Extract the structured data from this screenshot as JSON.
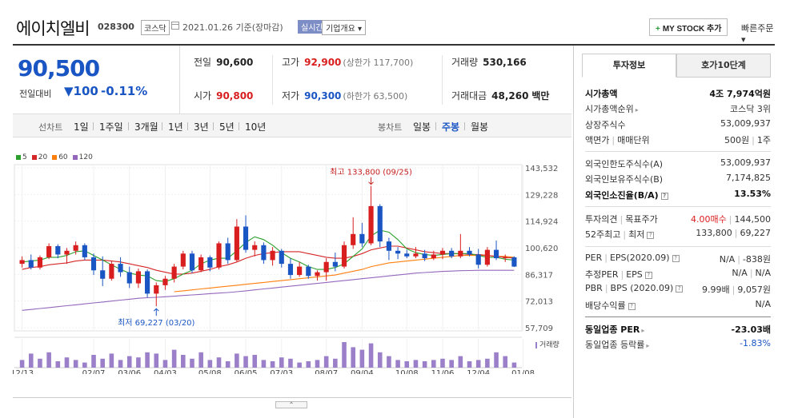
{
  "header": {
    "name": "에이치엘비",
    "code": "028300",
    "market": "코스닥",
    "date": "2021.01.26 기준(장마감)",
    "realtime": "실시간",
    "company_btn": "기업개요",
    "mystock_btn": "MY STOCK 추가",
    "quick_order": "빠른주문"
  },
  "price": {
    "current": "90,500",
    "change_label": "전일대비",
    "change": "100",
    "change_rate": "-0.11%"
  },
  "quotes": {
    "prev_label": "전일",
    "prev": "90,600",
    "high_label": "고가",
    "high": "92,900",
    "upper_limit": "(상한가 117,700)",
    "volume_label": "거래량",
    "volume": "530,166",
    "open_label": "시가",
    "open": "90,800",
    "low_label": "저가",
    "low": "90,300",
    "lower_limit": "(하한가 63,500)",
    "amount_label": "거래대금",
    "amount": "48,260",
    "amount_unit": "백만"
  },
  "toolbar": {
    "line_label": "선차트",
    "line_periods": [
      "1일",
      "1주일",
      "3개월",
      "1년",
      "3년",
      "5년",
      "10년"
    ],
    "candle_label": "봉차트",
    "candle_periods": [
      "일봉",
      "주봉",
      "월봉"
    ],
    "candle_selected": 1
  },
  "chart_data": {
    "type": "candlestick",
    "ma_legend": [
      {
        "name": "5",
        "color": "#2ca02c"
      },
      {
        "name": "20",
        "color": "#d62728"
      },
      {
        "name": "60",
        "color": "#ff7f0e"
      },
      {
        "name": "120",
        "color": "#9467bd"
      }
    ],
    "y_ticks": [
      143532,
      129228,
      114924,
      100620,
      86317,
      72013,
      57709
    ],
    "ylim": [
      57709,
      143532
    ],
    "x_labels": [
      "12/13",
      "02/07",
      "03/06",
      "04/03",
      "05/08",
      "06/05",
      "07/03",
      "08/07",
      "09/04",
      "10/08",
      "11/06",
      "12/04",
      "01/08"
    ],
    "x_label_index": [
      0,
      8,
      12,
      16,
      21,
      25,
      29,
      34,
      38,
      43,
      47,
      51,
      56
    ],
    "high_annotation": "최고 133,800 (09/25)",
    "low_annotation": "최저 69,227 (03/20)",
    "volume_label": "거래량",
    "candles": [
      [
        92000,
        96000,
        90000,
        94000
      ],
      [
        94000,
        97000,
        89000,
        90000
      ],
      [
        90000,
        96500,
        89000,
        95500
      ],
      [
        95500,
        103000,
        94500,
        101500
      ],
      [
        101500,
        102500,
        95000,
        97000
      ],
      [
        97000,
        100500,
        92000,
        99000
      ],
      [
        99000,
        104000,
        97000,
        102000
      ],
      [
        102000,
        103000,
        94000,
        95500
      ],
      [
        95500,
        97500,
        86000,
        88500
      ],
      [
        88500,
        96000,
        80000,
        84000
      ],
      [
        84000,
        93500,
        83000,
        92000
      ],
      [
        92000,
        95500,
        85000,
        87500
      ],
      [
        87500,
        90500,
        79000,
        81500
      ],
      [
        81500,
        89500,
        79000,
        88000
      ],
      [
        88000,
        89000,
        74000,
        76000
      ],
      [
        76000,
        82000,
        69227,
        80500
      ],
      [
        80500,
        85500,
        78000,
        84000
      ],
      [
        84000,
        92000,
        82000,
        90500
      ],
      [
        90500,
        99000,
        89000,
        97500
      ],
      [
        97500,
        99000,
        87000,
        88500
      ],
      [
        88500,
        97000,
        87500,
        95500
      ],
      [
        95500,
        96500,
        88000,
        90000
      ],
      [
        90000,
        104000,
        89000,
        103000
      ],
      [
        103000,
        106000,
        92000,
        94000
      ],
      [
        94000,
        116000,
        93000,
        112000
      ],
      [
        112000,
        118000,
        98000,
        99500
      ],
      [
        99500,
        104000,
        96000,
        102000
      ],
      [
        102000,
        103500,
        92000,
        94000
      ],
      [
        94000,
        101000,
        91000,
        99000
      ],
      [
        99000,
        100000,
        90000,
        92000
      ],
      [
        92000,
        95000,
        84000,
        86000
      ],
      [
        86000,
        93000,
        85000,
        90500
      ],
      [
        90500,
        91500,
        84000,
        85500
      ],
      [
        85500,
        88500,
        83000,
        87500
      ],
      [
        87500,
        95000,
        83000,
        93000
      ],
      [
        93000,
        98000,
        88000,
        90500
      ],
      [
        90500,
        104000,
        89500,
        102000
      ],
      [
        102000,
        117000,
        100000,
        108000
      ],
      [
        108000,
        114000,
        101000,
        103000
      ],
      [
        103000,
        133800,
        102000,
        123000
      ],
      [
        123000,
        124000,
        101000,
        104000
      ],
      [
        104000,
        106000,
        94000,
        99000
      ],
      [
        99000,
        101000,
        94500,
        97500
      ],
      [
        97500,
        99500,
        95000,
        96000
      ],
      [
        96000,
        101000,
        95000,
        97500
      ],
      [
        97500,
        99500,
        93500,
        95000
      ],
      [
        95000,
        99000,
        94000,
        97000
      ],
      [
        97000,
        100500,
        94500,
        99000
      ],
      [
        99000,
        100500,
        95000,
        96000
      ],
      [
        96000,
        108000,
        95000,
        99000
      ],
      [
        99000,
        101000,
        96000,
        97000
      ],
      [
        97000,
        100000,
        89500,
        91500
      ],
      [
        91500,
        101000,
        90500,
        99500
      ],
      [
        99500,
        104500,
        94000,
        95000
      ],
      [
        95000,
        97000,
        93000,
        95500
      ],
      [
        95500,
        96000,
        90300,
        90500
      ]
    ],
    "ma5": [
      93000,
      93500,
      94000,
      95500,
      95500,
      96500,
      98500,
      99000,
      96500,
      94000,
      91500,
      89000,
      87000,
      86000,
      85500,
      83000,
      82500,
      84000,
      86500,
      88500,
      92000,
      94000,
      95000,
      95000,
      99000,
      103500,
      106500,
      105000,
      102000,
      98000,
      95000,
      93000,
      90500,
      89000,
      89000,
      90000,
      92000,
      96000,
      100000,
      107000,
      110000,
      109000,
      105000,
      100000,
      98000,
      97000,
      96500,
      97000,
      97500,
      97500,
      97500,
      96500,
      95500,
      95500,
      94500,
      94000
    ],
    "ma20": [
      89000,
      90000,
      90500,
      91500,
      92000,
      92500,
      93500,
      94000,
      94000,
      94000,
      93500,
      93000,
      92000,
      91000,
      90000,
      88500,
      87500,
      86500,
      86500,
      87000,
      88000,
      89000,
      90500,
      91500,
      93000,
      95000,
      96500,
      97500,
      98000,
      98500,
      98500,
      98500,
      97500,
      96500,
      95500,
      95000,
      95000,
      96000,
      97500,
      99500,
      100500,
      101500,
      101500,
      100500,
      99500,
      98500,
      98000,
      97500,
      97500,
      97500,
      97000,
      97000,
      96500,
      96000,
      95500,
      95000
    ],
    "ma60": [
      null,
      null,
      null,
      null,
      null,
      null,
      null,
      null,
      null,
      null,
      null,
      null,
      null,
      null,
      null,
      null,
      null,
      77000,
      77500,
      78000,
      78500,
      79000,
      79500,
      80000,
      80500,
      81000,
      81500,
      82000,
      82500,
      83000,
      83500,
      84000,
      84500,
      85000,
      85500,
      86000,
      87000,
      88000,
      89000,
      90500,
      91500,
      92500,
      93000,
      93500,
      94000,
      94500,
      95000,
      95500,
      96000,
      96500,
      96500,
      96500,
      96500,
      96000,
      96000,
      95500
    ],
    "ma120": [
      67000,
      67500,
      68000,
      68500,
      69000,
      69500,
      70000,
      70500,
      71000,
      71500,
      72000,
      72500,
      73000,
      73500,
      73800,
      74000,
      74300,
      74600,
      75000,
      75300,
      75600,
      76000,
      76300,
      76600,
      77000,
      77500,
      78000,
      78500,
      79000,
      79500,
      80000,
      80500,
      81000,
      81500,
      82000,
      82500,
      83000,
      83500,
      84000,
      84500,
      85000,
      85500,
      86000,
      86500,
      87000,
      87300,
      87600,
      87900,
      88100,
      88300,
      88400,
      88500,
      88500,
      88500,
      88500,
      88500
    ],
    "volume": [
      30,
      55,
      35,
      60,
      25,
      40,
      30,
      20,
      50,
      35,
      55,
      30,
      45,
      40,
      60,
      55,
      30,
      70,
      50,
      35,
      60,
      30,
      40,
      25,
      55,
      45,
      50,
      30,
      25,
      40,
      35,
      20,
      25,
      30,
      45,
      35,
      100,
      80,
      70,
      95,
      60,
      45,
      30,
      25,
      30,
      25,
      30,
      35,
      30,
      45,
      25,
      30,
      35,
      60,
      45,
      20
    ],
    "volume_max": 100
  },
  "panel": {
    "tab_info": "투자정보",
    "tab_orderbook": "호가10단계",
    "rows": [
      {
        "l": "시가총액",
        "r": "4조 7,974억원",
        "bold": true
      },
      {
        "l": "시가총액순위",
        "r": "코스닥 3위",
        "arrow": true
      },
      {
        "l": "상장주식수",
        "r": "53,009,937"
      },
      {
        "l": "액면가",
        "l2": "매매단위",
        "r": "500원",
        "r2": "1주"
      }
    ],
    "rows2": [
      {
        "l": "외국인한도주식수(A)",
        "r": "53,009,937"
      },
      {
        "l": "외국인보유주식수(B)",
        "r": "7,174,825"
      },
      {
        "l": "외국인소진율(B/A)",
        "r": "13.53%",
        "bold": true,
        "help": true
      }
    ],
    "rows3": [
      {
        "l": "투자의견",
        "l2": "목표주가",
        "r": "4.00매수",
        "r2": "144,500",
        "r_red": true
      },
      {
        "l": "52주최고",
        "l2": "최저",
        "r": "133,800",
        "r2": "69,227",
        "help": true
      }
    ],
    "rows4": [
      {
        "l": "PER",
        "l2": "EPS(2020.09)",
        "r": "N/A",
        "r2": "-838원",
        "help": true
      },
      {
        "l": "추정PER",
        "l2": "EPS",
        "r": "N/A",
        "r2": "N/A",
        "help": true
      },
      {
        "l": "PBR",
        "l2": "BPS (2020.09)",
        "r": "9.99배",
        "r2": "9,057원",
        "help": true
      },
      {
        "l": "배당수익률",
        "r": "N/A",
        "help": true
      }
    ],
    "rows5": [
      {
        "l": "동일업종 PER",
        "r": "-23.03배",
        "bold": true,
        "arrow": true
      },
      {
        "l": "동일업종 등락률",
        "r": "-1.83%",
        "arrow": true,
        "r_blue": true
      }
    ]
  }
}
